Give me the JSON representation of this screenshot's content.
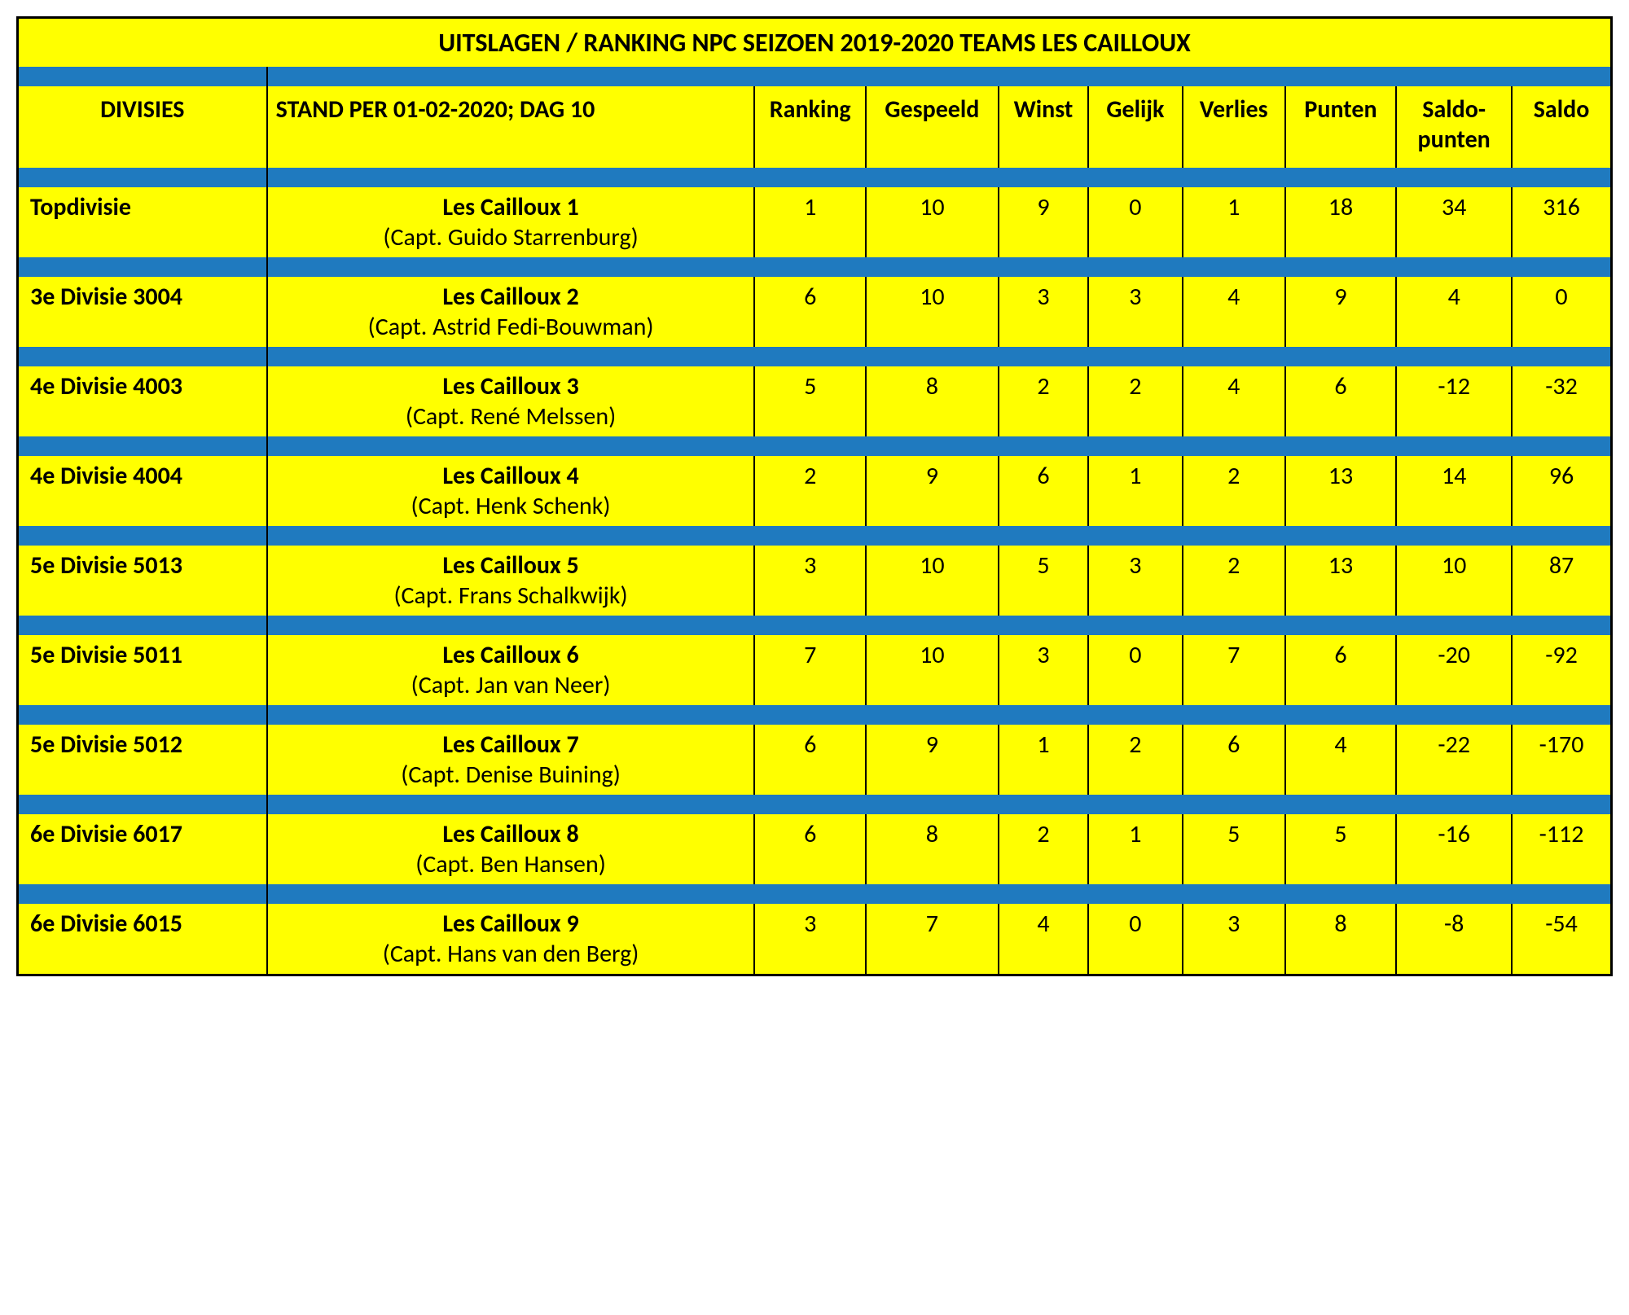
{
  "title": "UITSLAGEN / RANKING NPC SEIZOEN 2019-2020 TEAMS LES CAILLOUX",
  "headers": {
    "divisies": "DIVISIES",
    "stand": "STAND PER 01-02-2020; DAG 10",
    "ranking": "Ranking",
    "gespeeld": "Gespeeld",
    "winst": "Winst",
    "gelijk": "Gelijk",
    "verlies": "Verlies",
    "punten": "Punten",
    "saldopunten_l1": "Saldo-",
    "saldopunten_l2": "punten",
    "saldo": "Saldo"
  },
  "colors": {
    "yellow": "#ffff00",
    "blue": "#1f7abf",
    "border": "#000000"
  },
  "rows": [
    {
      "divisie": "Topdivisie",
      "team": "Les Cailloux 1",
      "captain": "(Capt. Guido Starrenburg)",
      "ranking": "1",
      "gespeeld": "10",
      "winst": "9",
      "gelijk": "0",
      "verlies": "1",
      "punten": "18",
      "saldopunten": "34",
      "saldo": "316"
    },
    {
      "divisie": "3e Divisie 3004",
      "team": "Les Cailloux 2",
      "captain": "(Capt. Astrid Fedi-Bouwman)",
      "ranking": "6",
      "gespeeld": "10",
      "winst": "3",
      "gelijk": "3",
      "verlies": "4",
      "punten": "9",
      "saldopunten": "4",
      "saldo": "0"
    },
    {
      "divisie": "4e Divisie 4003",
      "team": "Les Cailloux 3",
      "captain": "(Capt. René Melssen)",
      "ranking": "5",
      "gespeeld": "8",
      "winst": "2",
      "gelijk": "2",
      "verlies": "4",
      "punten": "6",
      "saldopunten": "-12",
      "saldo": "-32"
    },
    {
      "divisie": "4e Divisie 4004",
      "team": "Les Cailloux 4",
      "captain": "(Capt. Henk Schenk)",
      "ranking": "2",
      "gespeeld": "9",
      "winst": "6",
      "gelijk": "1",
      "verlies": "2",
      "punten": "13",
      "saldopunten": "14",
      "saldo": "96"
    },
    {
      "divisie": "5e Divisie 5013",
      "team": "Les Cailloux 5",
      "captain": "(Capt. Frans Schalkwijk)",
      "ranking": "3",
      "gespeeld": "10",
      "winst": "5",
      "gelijk": "3",
      "verlies": "2",
      "punten": "13",
      "saldopunten": "10",
      "saldo": "87"
    },
    {
      "divisie": "5e Divisie 5011",
      "team": "Les Cailloux 6",
      "captain": "(Capt. Jan van Neer)",
      "ranking": "7",
      "gespeeld": "10",
      "winst": "3",
      "gelijk": "0",
      "verlies": "7",
      "punten": "6",
      "saldopunten": "-20",
      "saldo": "-92"
    },
    {
      "divisie": "5e Divisie 5012",
      "team": "Les Cailloux 7",
      "captain": "(Capt. Denise Buining)",
      "ranking": "6",
      "gespeeld": "9",
      "winst": "1",
      "gelijk": "2",
      "verlies": "6",
      "punten": "4",
      "saldopunten": "-22",
      "saldo": "-170"
    },
    {
      "divisie": "6e Divisie 6017",
      "team": "Les Cailloux 8",
      "captain": "(Capt. Ben Hansen)",
      "ranking": "6",
      "gespeeld": "8",
      "winst": "2",
      "gelijk": "1",
      "verlies": "5",
      "punten": "5",
      "saldopunten": "-16",
      "saldo": "-112"
    },
    {
      "divisie": "6e Divisie 6015",
      "team": "Les Cailloux 9",
      "captain": "(Capt. Hans van den Berg)",
      "ranking": "3",
      "gespeeld": "7",
      "winst": "4",
      "gelijk": "0",
      "verlies": "3",
      "punten": "8",
      "saldopunten": "-8",
      "saldo": "-54"
    }
  ]
}
